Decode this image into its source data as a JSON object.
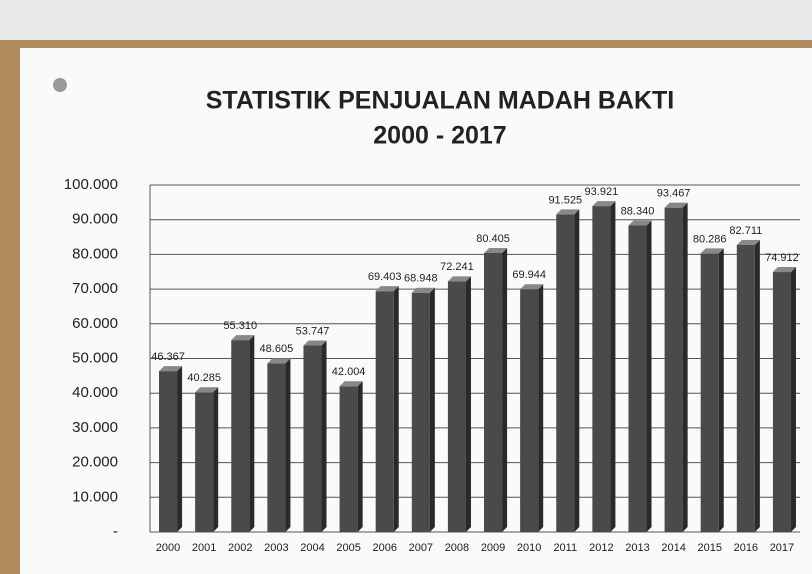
{
  "chart_data": {
    "type": "bar3d",
    "title": "STATISTIK PENJUALAN MADAH BAKTI",
    "subtitle": "2000 - 2017",
    "categories": [
      "2000",
      "2001",
      "2002",
      "2003",
      "2004",
      "2005",
      "2006",
      "2007",
      "2008",
      "2009",
      "2010",
      "2011",
      "2012",
      "2013",
      "2014",
      "2015",
      "2016",
      "2017"
    ],
    "values": [
      46367,
      40285,
      55310,
      48605,
      53747,
      42004,
      69403,
      68948,
      72241,
      80405,
      69944,
      91525,
      93921,
      88340,
      93467,
      80286,
      82711,
      74912
    ],
    "value_labels": [
      "46.367",
      "40.285",
      "55.310",
      "48.605",
      "53.747",
      "42.004",
      "69.403",
      "68.948",
      "72.241",
      "80.405",
      "69.944",
      "91.525",
      "93.921",
      "88.340",
      "93.467",
      "80.286",
      "82.711",
      "74.912"
    ],
    "color": "#4a4a4a",
    "ylim": [
      0,
      100000
    ],
    "yticks": [
      {
        "value": 0,
        "label": "-"
      },
      {
        "value": 10000,
        "label": "10.000"
      },
      {
        "value": 20000,
        "label": "20.000"
      },
      {
        "value": 30000,
        "label": "30.000"
      },
      {
        "value": 40000,
        "label": "40.000"
      },
      {
        "value": 50000,
        "label": "50.000"
      },
      {
        "value": 60000,
        "label": "60.000"
      },
      {
        "value": 70000,
        "label": "70.000"
      },
      {
        "value": 80000,
        "label": "80.000"
      },
      {
        "value": 90000,
        "label": "90.000"
      },
      {
        "value": 100000,
        "label": "100.000"
      }
    ],
    "grid": true
  }
}
